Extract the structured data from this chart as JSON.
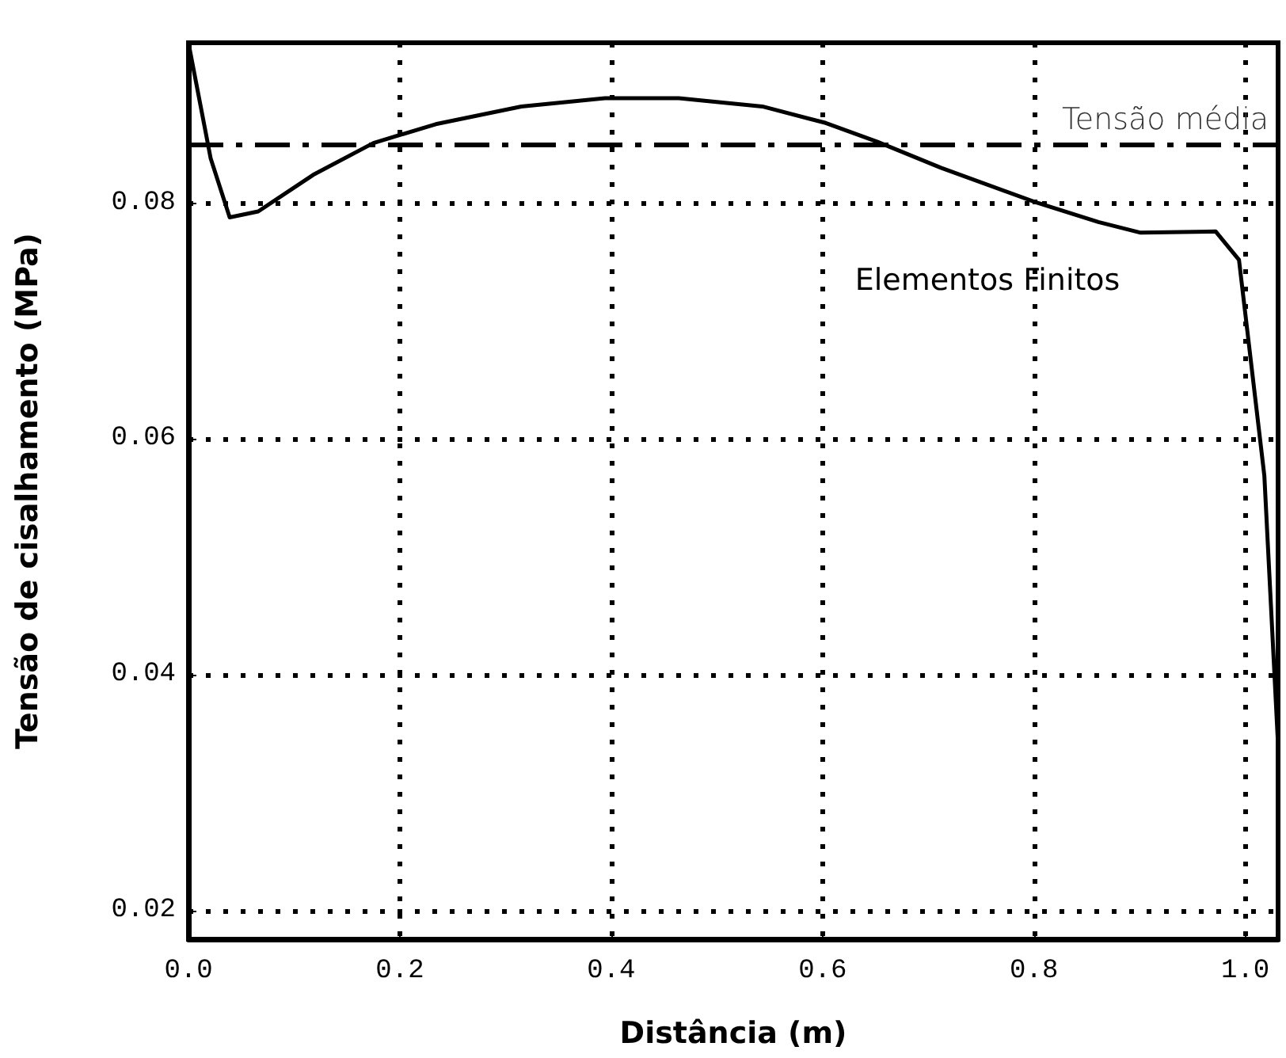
{
  "chart_data": {
    "type": "line",
    "xlabel": "Distância (m)",
    "ylabel": "Tensão de cisalhamento (MPa)",
    "xlim": [
      0,
      1.031
    ],
    "ylim": [
      0.0176,
      0.0936
    ],
    "xticks": [
      {
        "value": 0,
        "label": "0.0"
      },
      0.2,
      0.4,
      0.6,
      0.8,
      {
        "value": 1,
        "label": "1.0"
      }
    ],
    "yticks": [
      0.02,
      0.04,
      0.06,
      0.08
    ],
    "grid": true,
    "legend": false,
    "marker": "none",
    "line_style": "solid",
    "ref_lines": [
      {
        "axis": "y",
        "value": 0.085,
        "label": "Tensão média",
        "line_style": "dashed",
        "color": "#000000"
      }
    ],
    "series": [
      {
        "name": "Elementos Finitos",
        "color": "#000000",
        "x": [
          0,
          0.021,
          0.039,
          0.066,
          0.118,
          0.175,
          0.234,
          0.315,
          0.394,
          0.464,
          0.543,
          0.603,
          0.652,
          0.712,
          0.801,
          0.861,
          0.901,
          0.972,
          0.994,
          1.018,
          1.031
        ],
        "values": [
          0.0936,
          0.0838,
          0.0788,
          0.0793,
          0.0824,
          0.0851,
          0.0867,
          0.0882,
          0.0889,
          0.0889,
          0.0882,
          0.0868,
          0.0852,
          0.083,
          0.0801,
          0.0784,
          0.0775,
          0.0776,
          0.0752,
          0.0569,
          0.034
        ]
      }
    ]
  }
}
